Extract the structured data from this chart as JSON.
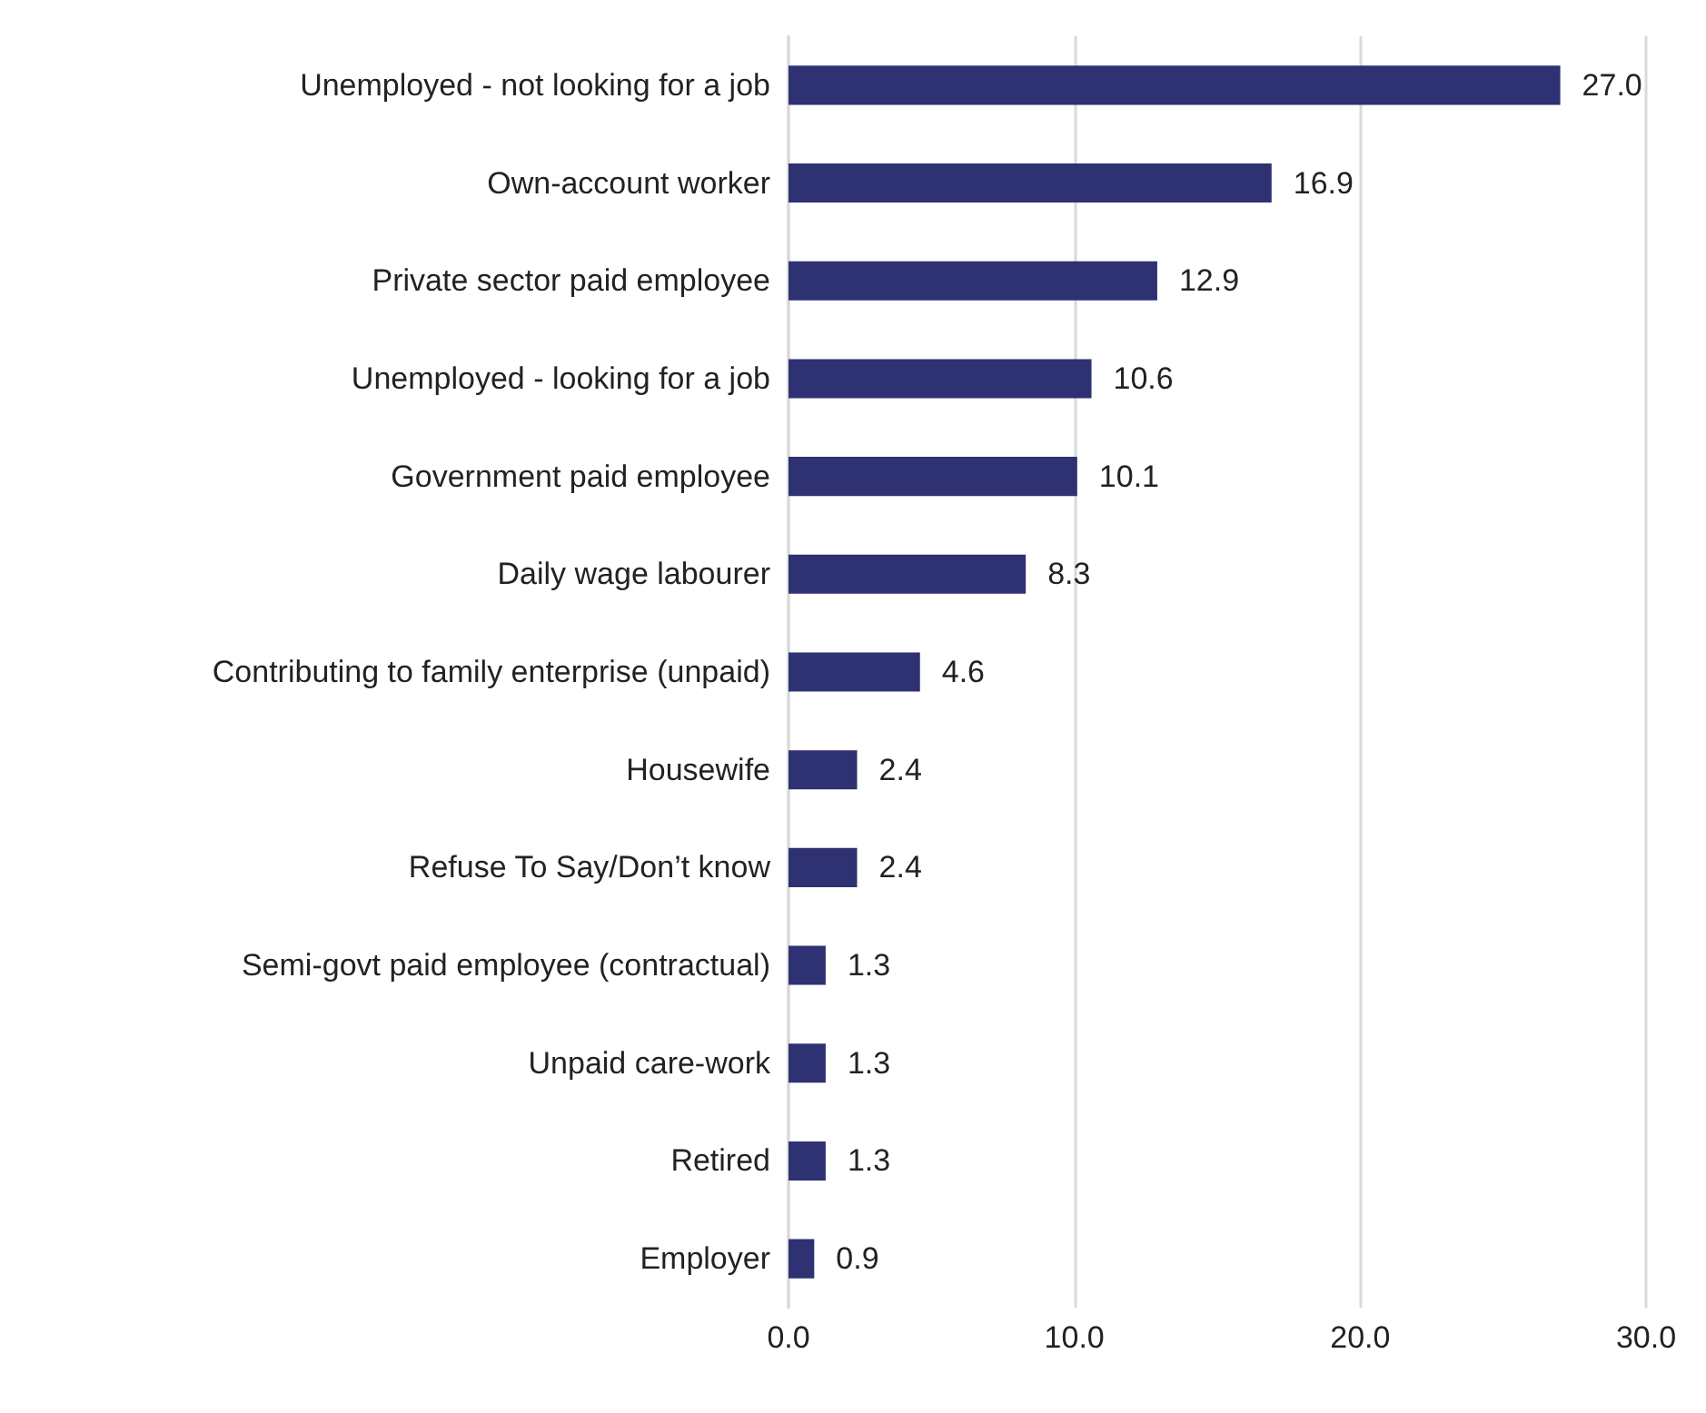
{
  "chart_data": {
    "type": "bar",
    "orientation": "horizontal",
    "categories": [
      "Unemployed - not looking for a job",
      "Own-account worker",
      "Private sector paid employee",
      "Unemployed - looking for a job",
      "Government paid employee",
      "Daily wage labourer",
      "Contributing to family enterprise (unpaid)",
      "Housewife",
      "Refuse To Say/Don’t know",
      "Semi-govt paid employee (contractual)",
      "Unpaid care-work",
      "Retired",
      "Employer"
    ],
    "values": [
      27.0,
      16.9,
      12.9,
      10.6,
      10.1,
      8.3,
      4.6,
      2.4,
      2.4,
      1.3,
      1.3,
      1.3,
      0.9
    ],
    "value_labels": [
      "27.0",
      "16.9",
      "12.9",
      "10.6",
      "10.1",
      "8.3",
      "4.6",
      "2.4",
      "2.4",
      "1.3",
      "1.3",
      "1.3",
      "0.9"
    ],
    "color": "#2e3172",
    "xlim": [
      0,
      30
    ],
    "xticks": [
      {
        "value": 0,
        "label": "0.0"
      },
      {
        "value": 10,
        "label": "10.0"
      },
      {
        "value": 20,
        "label": "20.0"
      },
      {
        "value": 30,
        "label": "30.0"
      }
    ],
    "grid": "x"
  }
}
